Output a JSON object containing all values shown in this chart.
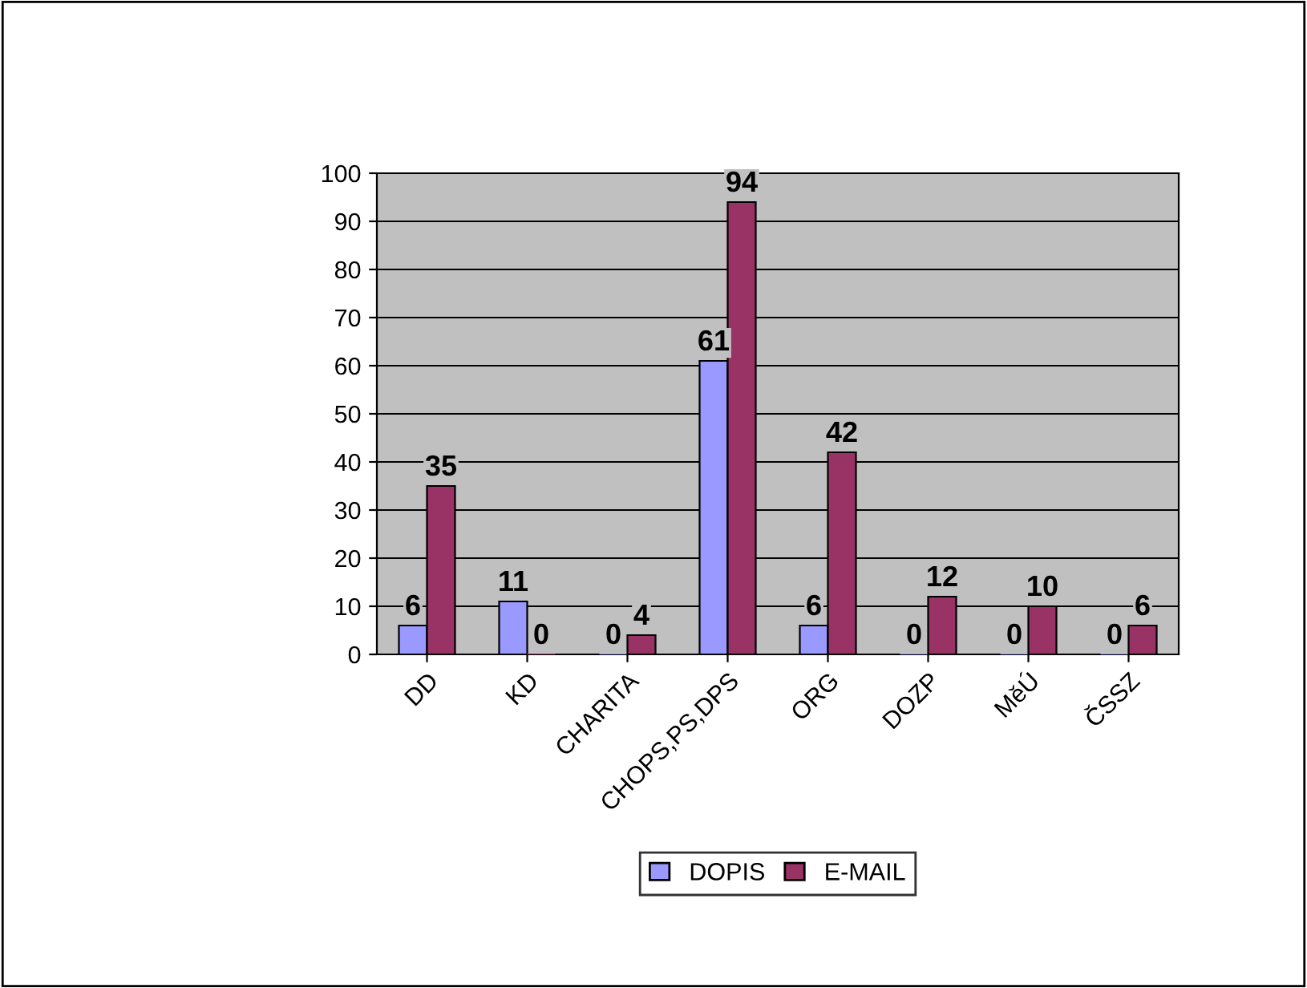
{
  "chart_data": {
    "type": "bar",
    "categories": [
      "DD",
      "KD",
      "CHARITA",
      "CHOPS,PS,DPS",
      "ORG",
      "DOZP",
      "MěÚ",
      "ČSSZ"
    ],
    "series": [
      {
        "name": "DOPIS",
        "color": "#9999ff",
        "values": [
          6,
          11,
          0,
          61,
          6,
          0,
          0,
          0
        ]
      },
      {
        "name": "E-MAIL",
        "color": "#993366",
        "values": [
          35,
          0,
          4,
          94,
          42,
          12,
          10,
          6
        ]
      }
    ],
    "ylim": [
      0,
      100
    ],
    "yticks": [
      0,
      10,
      20,
      30,
      40,
      50,
      60,
      70,
      80,
      90,
      100
    ],
    "grid": "y",
    "legend": "bottom",
    "data_labels": true
  }
}
